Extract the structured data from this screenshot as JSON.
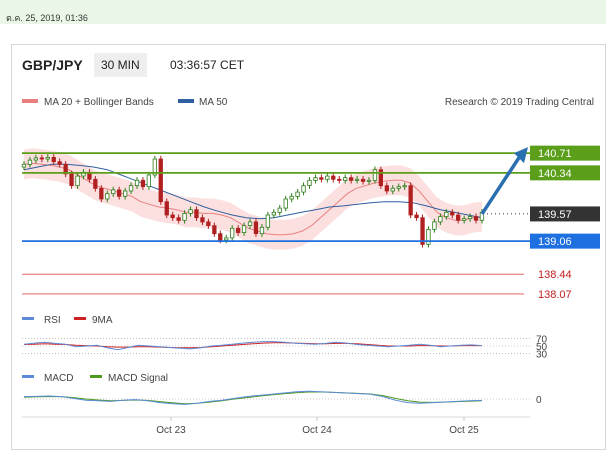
{
  "top_date": "ต.ค. 25, 2019, 01:36",
  "header": {
    "pair": "GBP/JPY",
    "timeframe": "30 MIN",
    "time": "03:36:57 CET"
  },
  "legend": {
    "ma20": "MA 20 + Bollinger Bands",
    "ma50": "MA 50",
    "credit": "Research © 2019 Trading Central"
  },
  "colors": {
    "ma20": "#e88080",
    "ma50": "#2f5f9e",
    "band": "#fbdada",
    "green": "#5a9e1a",
    "blue": "#1e6fe0",
    "red": "#e05050",
    "dark": "#333333",
    "rsi": "#5b8bd6",
    "rsi_ma": "#d02020",
    "macd": "#5b8bd6",
    "macd_signal": "#4e9a1e"
  },
  "chart_data": [
    {
      "type": "candlestick",
      "xlabel": "",
      "ylabel": "",
      "x_ticks": [
        "Oct 23",
        "Oct 24",
        "Oct 25"
      ],
      "ylim": [
        137.9,
        141.2
      ],
      "series": [
        {
          "name": "GBP/JPY",
          "close": [
            140.5,
            140.58,
            140.62,
            140.6,
            140.63,
            140.55,
            140.5,
            140.32,
            140.1,
            140.28,
            140.35,
            140.22,
            140.05,
            139.85,
            139.95,
            140.02,
            139.9,
            140.0,
            140.1,
            140.2,
            140.08,
            140.3,
            140.6,
            139.8,
            139.55,
            139.5,
            139.45,
            139.58,
            139.65,
            139.5,
            139.42,
            139.35,
            139.2,
            139.08,
            139.12,
            139.3,
            139.22,
            139.35,
            139.42,
            139.2,
            139.32,
            139.55,
            139.6,
            139.68,
            139.85,
            139.9,
            139.98,
            140.1,
            140.2,
            140.25,
            140.22,
            140.28,
            140.22,
            140.2,
            140.25,
            140.2,
            140.22,
            140.18,
            140.2,
            140.4,
            140.1,
            140.0,
            140.05,
            140.08,
            140.1,
            139.55,
            139.5,
            139.0,
            139.28,
            139.42,
            139.52,
            139.6,
            139.55,
            139.45,
            139.48,
            139.52,
            139.45,
            139.6
          ]
        }
      ],
      "levels": [
        {
          "value": 140.71,
          "label": "140.71",
          "style": "resistance"
        },
        {
          "value": 140.34,
          "label": "140.34",
          "style": "resistance"
        },
        {
          "value": 139.57,
          "label": "139.57",
          "style": "last"
        },
        {
          "value": 139.06,
          "label": "139.06",
          "style": "support"
        },
        {
          "value": 138.44,
          "label": "138.44",
          "style": "support-minor"
        },
        {
          "value": 138.07,
          "label": "138.07",
          "style": "support-minor"
        }
      ],
      "ma20": [
        140.5,
        140.52,
        140.5,
        140.48,
        140.45,
        140.4,
        140.3,
        140.2,
        140.1,
        140.05,
        140.0,
        139.95,
        139.9,
        139.8,
        139.75,
        139.7,
        139.68,
        139.65,
        139.6,
        139.6,
        139.58,
        139.58,
        139.55,
        139.5,
        139.4,
        139.3,
        139.25,
        139.2,
        139.18,
        139.18,
        139.2,
        139.25,
        139.35,
        139.5,
        139.65,
        139.8,
        139.95,
        140.05,
        140.1,
        140.15,
        140.18,
        140.2,
        140.2,
        140.15,
        140.0,
        139.8,
        139.6,
        139.5,
        139.45,
        139.45,
        139.5,
        139.52
      ],
      "ma50": [
        140.4,
        140.45,
        140.5,
        140.5,
        140.48,
        140.45,
        140.4,
        140.3,
        140.2,
        140.1,
        140.0,
        139.9,
        139.8,
        139.7,
        139.62,
        139.55,
        139.5,
        139.48,
        139.5,
        139.55,
        139.6,
        139.65,
        139.7,
        139.72,
        139.75,
        139.78,
        139.8,
        139.8,
        139.78,
        139.72,
        139.65,
        139.6,
        139.55,
        139.5
      ]
    },
    {
      "type": "line",
      "name": "RSI",
      "series": [
        {
          "name": "RSI"
        },
        {
          "name": "9MA"
        }
      ],
      "y_ticks": [
        "70",
        "50",
        "30"
      ],
      "ylim": [
        20,
        80
      ],
      "rsi": [
        55,
        58,
        60,
        57,
        55,
        48,
        50,
        52,
        45,
        40,
        46,
        52,
        50,
        48,
        46,
        44,
        42,
        45,
        50,
        52,
        55,
        58,
        60,
        62,
        62,
        60,
        58,
        56,
        55,
        57,
        60,
        58,
        54,
        52,
        50,
        48,
        50,
        52,
        55,
        52,
        48,
        50,
        52,
        53,
        51
      ],
      "rsi_ma": [
        54,
        55,
        56,
        55,
        54,
        52,
        51,
        50,
        48,
        47,
        47,
        48,
        48,
        47,
        46,
        45,
        45,
        46,
        48,
        50,
        52,
        54,
        56,
        58,
        59,
        59,
        58,
        57,
        56,
        56,
        57,
        57,
        56,
        54,
        52,
        50,
        50,
        50,
        51,
        51,
        50,
        50,
        51,
        51,
        51
      ]
    },
    {
      "type": "line",
      "name": "MACD",
      "series": [
        {
          "name": "MACD"
        },
        {
          "name": "MACD Signal"
        }
      ],
      "y_ticks": [
        "0"
      ],
      "ylim": [
        -1,
        1
      ],
      "macd": [
        0.2,
        0.22,
        0.25,
        0.2,
        0.05,
        -0.1,
        -0.15,
        -0.2,
        -0.1,
        -0.05,
        -0.15,
        -0.3,
        -0.4,
        -0.45,
        -0.35,
        -0.2,
        -0.1,
        0.05,
        0.2,
        0.3,
        0.4,
        0.5,
        0.6,
        0.65,
        0.6,
        0.55,
        0.5,
        0.45,
        0.4,
        0.2,
        -0.1,
        -0.3,
        -0.35,
        -0.3,
        -0.25,
        -0.2,
        -0.15,
        -0.12
      ],
      "macd_signal": [
        0.15,
        0.18,
        0.2,
        0.2,
        0.12,
        0.0,
        -0.08,
        -0.14,
        -0.12,
        -0.08,
        -0.12,
        -0.22,
        -0.32,
        -0.4,
        -0.36,
        -0.26,
        -0.15,
        0.0,
        0.12,
        0.24,
        0.34,
        0.44,
        0.52,
        0.58,
        0.58,
        0.55,
        0.51,
        0.47,
        0.42,
        0.28,
        0.05,
        -0.15,
        -0.26,
        -0.28,
        -0.26,
        -0.22,
        -0.18,
        -0.15
      ]
    }
  ]
}
